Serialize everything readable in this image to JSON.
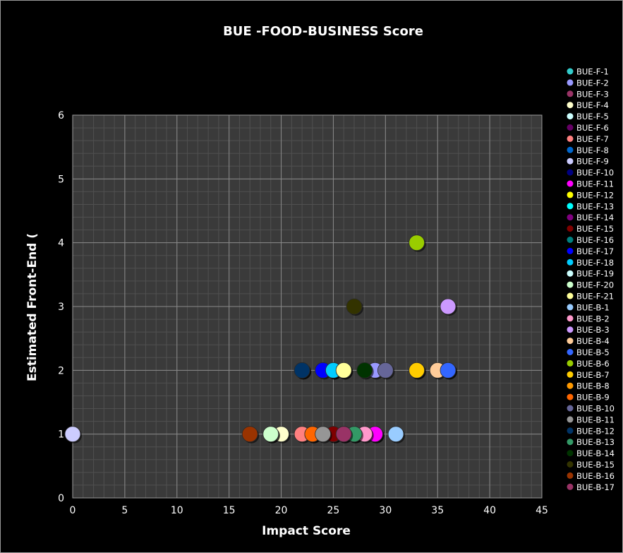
{
  "chart_data": {
    "type": "scatter",
    "title": "BUE -FOOD-BUSINESS Score",
    "xlabel": "Impact Score",
    "ylabel": "Estimated Front-End (",
    "xlim": [
      0,
      45
    ],
    "ylim": [
      0,
      6
    ],
    "xticks": [
      "0",
      "5",
      "10",
      "15",
      "20",
      "25",
      "30",
      "35",
      "40",
      "45"
    ],
    "yticks": [
      "0",
      "1",
      "2",
      "3",
      "4",
      "5",
      "6"
    ],
    "grid": true,
    "legend_position": "right",
    "series": [
      {
        "name": "BUE-F-1",
        "color": "#33cccc",
        "points": [
          [
            25,
            2
          ]
        ]
      },
      {
        "name": "BUE-F-2",
        "color": "#9999ff",
        "points": [
          [
            29,
            2
          ]
        ]
      },
      {
        "name": "BUE-F-3",
        "color": "#993366",
        "points": [
          [
            26,
            1
          ]
        ]
      },
      {
        "name": "BUE-F-4",
        "color": "#ffffcc",
        "points": [
          [
            20,
            1
          ]
        ]
      },
      {
        "name": "BUE-F-5",
        "color": "#ccffff",
        "points": [
          [
            19,
            1
          ]
        ]
      },
      {
        "name": "BUE-F-6",
        "color": "#660066",
        "points": [
          [
            29,
            1
          ]
        ]
      },
      {
        "name": "BUE-F-7",
        "color": "#ff8080",
        "points": [
          [
            22,
            1
          ]
        ]
      },
      {
        "name": "BUE-F-8",
        "color": "#0066cc",
        "points": [
          [
            36,
            2
          ]
        ]
      },
      {
        "name": "BUE-F-9",
        "color": "#ccccff",
        "points": [
          [
            0,
            1
          ]
        ]
      },
      {
        "name": "BUE-F-10",
        "color": "#000080",
        "points": [
          [
            22,
            2
          ]
        ]
      },
      {
        "name": "BUE-F-11",
        "color": "#ff00ff",
        "points": [
          [
            29,
            1
          ]
        ]
      },
      {
        "name": "BUE-F-12",
        "color": "#ffff00",
        "points": [
          [
            33,
            2
          ]
        ]
      },
      {
        "name": "BUE-F-13",
        "color": "#00ffff",
        "points": [
          [
            25,
            2
          ]
        ]
      },
      {
        "name": "BUE-F-14",
        "color": "#800080",
        "points": [
          [
            25,
            1
          ]
        ]
      },
      {
        "name": "BUE-F-15",
        "color": "#800000",
        "points": [
          [
            25,
            1
          ]
        ]
      },
      {
        "name": "BUE-F-16",
        "color": "#008080",
        "points": [
          [
            27,
            1
          ]
        ]
      },
      {
        "name": "BUE-F-17",
        "color": "#0000ff",
        "points": [
          [
            24,
            2
          ]
        ]
      },
      {
        "name": "BUE-F-18",
        "color": "#00ccff",
        "points": [
          [
            25,
            2
          ]
        ]
      },
      {
        "name": "BUE-F-19",
        "color": "#ccffff",
        "points": [
          [
            26,
            2
          ]
        ]
      },
      {
        "name": "BUE-F-20",
        "color": "#ccffcc",
        "points": [
          [
            19,
            1
          ]
        ]
      },
      {
        "name": "BUE-F-21",
        "color": "#ffff99",
        "points": [
          [
            26,
            2
          ]
        ]
      },
      {
        "name": "BUE-B-1",
        "color": "#99ccff",
        "points": [
          [
            31,
            1
          ]
        ]
      },
      {
        "name": "BUE-B-2",
        "color": "#ff99cc",
        "points": [
          [
            28,
            1
          ]
        ]
      },
      {
        "name": "BUE-B-3",
        "color": "#cc99ff",
        "points": [
          [
            36,
            3
          ]
        ]
      },
      {
        "name": "BUE-B-4",
        "color": "#ffcc99",
        "points": [
          [
            35,
            2
          ]
        ]
      },
      {
        "name": "BUE-B-5",
        "color": "#3366ff",
        "points": [
          [
            36,
            2
          ]
        ]
      },
      {
        "name": "BUE-B-6",
        "color": "#99cc00",
        "points": [
          [
            33,
            4
          ]
        ]
      },
      {
        "name": "BUE-B-7",
        "color": "#ffcc00",
        "points": [
          [
            33,
            2
          ]
        ]
      },
      {
        "name": "BUE-B-8",
        "color": "#ff9900",
        "points": [
          [
            23,
            1
          ]
        ]
      },
      {
        "name": "BUE-B-9",
        "color": "#ff6600",
        "points": [
          [
            23,
            1
          ]
        ]
      },
      {
        "name": "BUE-B-10",
        "color": "#666699",
        "points": [
          [
            30,
            2
          ]
        ]
      },
      {
        "name": "BUE-B-11",
        "color": "#969696",
        "points": [
          [
            24,
            1
          ]
        ]
      },
      {
        "name": "BUE-B-12",
        "color": "#003366",
        "points": [
          [
            22,
            2
          ]
        ]
      },
      {
        "name": "BUE-B-13",
        "color": "#339966",
        "points": [
          [
            27,
            1
          ]
        ]
      },
      {
        "name": "BUE-B-14",
        "color": "#003300",
        "points": [
          [
            28,
            2
          ]
        ]
      },
      {
        "name": "BUE-B-15",
        "color": "#333300",
        "points": [
          [
            27,
            3
          ]
        ]
      },
      {
        "name": "BUE-B-16",
        "color": "#993300",
        "points": [
          [
            17,
            1
          ]
        ]
      },
      {
        "name": "BUE-B-17",
        "color": "#993366",
        "points": [
          [
            26,
            1
          ]
        ]
      }
    ]
  }
}
